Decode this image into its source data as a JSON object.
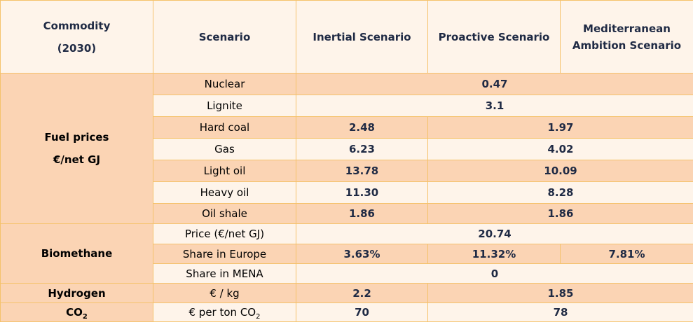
{
  "header": {
    "commodity": [
      "Commodity",
      "(2030)"
    ],
    "scenario": "Scenario",
    "inertial": "Inertial Scenario",
    "proactive": "Proactive Scenario",
    "mediterranean": [
      "Mediterranean",
      "Ambition Scenario"
    ]
  },
  "fuel": {
    "category": [
      "Fuel prices",
      "€/net GJ"
    ],
    "rows": [
      {
        "label": "Nuclear",
        "merged": "0.47"
      },
      {
        "label": "Lignite",
        "merged": "3.1"
      },
      {
        "label": "Hard coal",
        "inertial": "2.48",
        "rest": "1.97"
      },
      {
        "label": "Gas",
        "inertial": "6.23",
        "rest": "4.02"
      },
      {
        "label": "Light oil",
        "inertial": "13.78",
        "rest": "10.09"
      },
      {
        "label": "Heavy oil",
        "inertial": "11.30",
        "rest": "8.28"
      },
      {
        "label": "Oil shale",
        "inertial": "1.86",
        "rest": "1.86"
      }
    ]
  },
  "biomethane": {
    "category": "Biomethane",
    "rows": [
      {
        "label": "Price (€/net GJ)",
        "merged": "20.74"
      },
      {
        "label": "Share in Europe",
        "inertial": "3.63%",
        "proactive": "11.32%",
        "mediterranean": "7.81%"
      },
      {
        "label": "Share in MENA",
        "merged": "0"
      }
    ]
  },
  "hydrogen": {
    "category": "Hydrogen",
    "label": "€ / kg",
    "inertial": "2.2",
    "rest": "1.85"
  },
  "co2": {
    "category_main": "CO",
    "category_sub": "2",
    "label_main": "€ per ton CO",
    "label_sub": "2",
    "inertial": "70",
    "rest": "78"
  }
}
